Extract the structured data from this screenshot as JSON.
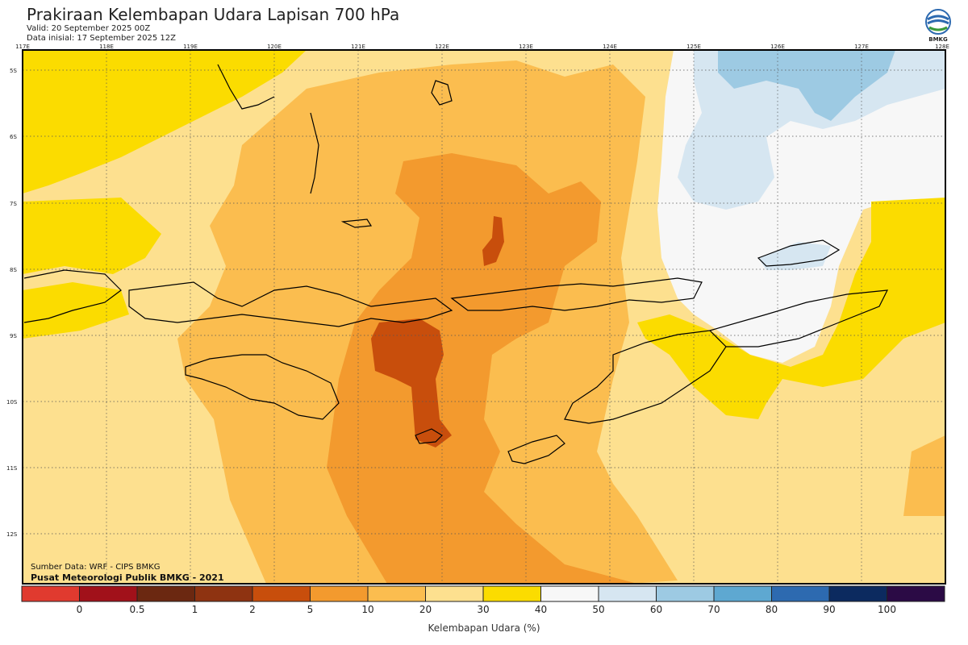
{
  "header": {
    "title": "Prakiraan Kelembapan Udara Lapisan 700 hPa",
    "valid": "Valid: 20 September 2025 00Z",
    "init": "Data inisial: 17 September 2025 12Z",
    "logo_text": "BMKG"
  },
  "credits": {
    "source": "Sumber Data: WRF - CIPS BMKG",
    "center": "Pusat Meteorologi Publik BMKG - 2021"
  },
  "axes": {
    "lon_labels": [
      "117E",
      "118E",
      "119E",
      "120E",
      "121E",
      "122E",
      "123E",
      "124E",
      "125E",
      "126E",
      "127E",
      "128E"
    ],
    "lat_labels": [
      "5S",
      "6S",
      "7S",
      "8S",
      "9S",
      "10S",
      "11S",
      "12S"
    ]
  },
  "legend": {
    "title": "Kelembapan Udara (%)",
    "ticks": [
      "0",
      "0.5",
      "1",
      "2",
      "5",
      "10",
      "20",
      "30",
      "40",
      "50",
      "60",
      "70",
      "80",
      "90",
      "100"
    ],
    "colors": [
      "#e03a2f",
      "#a1111a",
      "#6b2811",
      "#8e3311",
      "#c84e0c",
      "#f39a2e",
      "#fbbd4f",
      "#fde08f",
      "#fbdc00",
      "#f7f7f7",
      "#d6e6f1",
      "#9dcae3",
      "#5ea8d1",
      "#2d6ab0",
      "#0c2a5f",
      "#2b0a45"
    ]
  },
  "chart_data": {
    "type": "heatmap",
    "title": "Prakiraan Kelembapan Udara Lapisan 700 hPa",
    "xlim": [
      117,
      128
    ],
    "ylim": [
      -12.7,
      -4.6
    ],
    "colorbar_label": "Kelembapan Udara (%)",
    "grid": true
  }
}
